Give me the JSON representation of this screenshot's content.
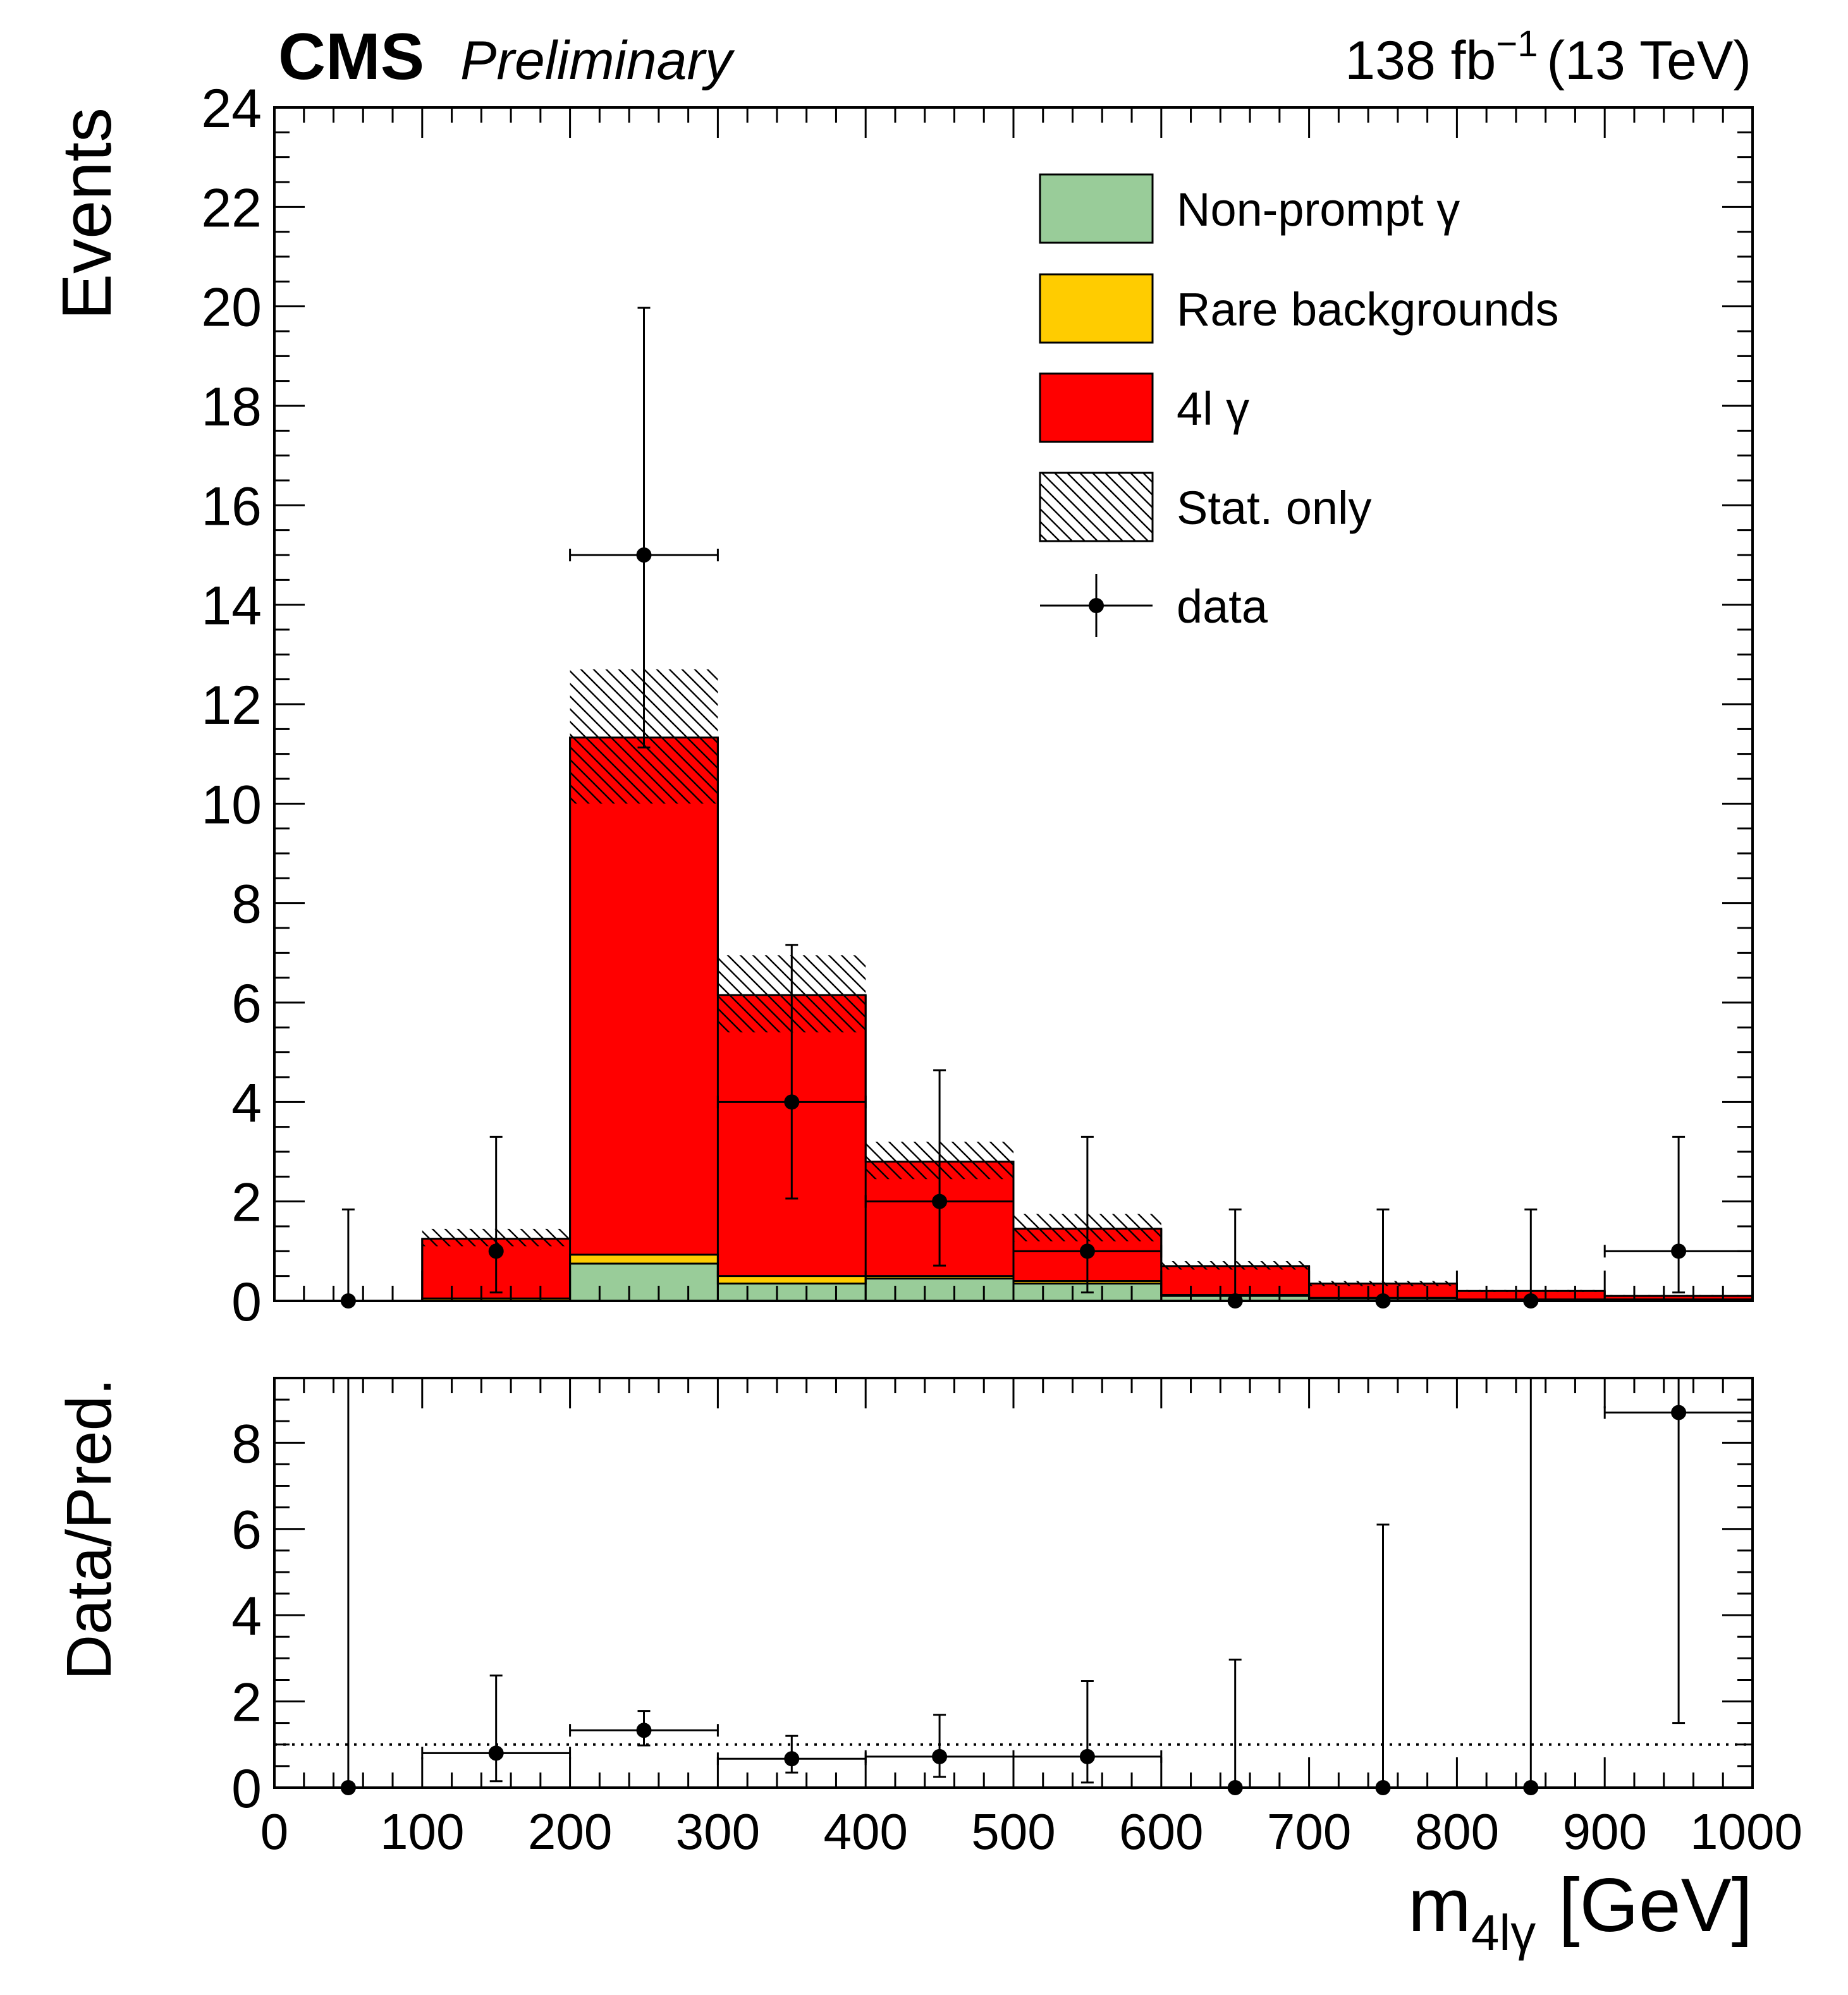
{
  "header": {
    "experiment": "CMS",
    "status": "Preliminary",
    "lumi_value": "138 fb",
    "lumi_exponent": "−1",
    "energy": "(13 TeV)"
  },
  "chart_data": [
    {
      "type": "bar",
      "stacked": true,
      "panel": "main",
      "ylabel": "Events",
      "xlim": [
        0,
        1000
      ],
      "ylim": [
        0,
        24
      ],
      "yticks": [
        "0",
        "2",
        "4",
        "6",
        "8",
        "10",
        "12",
        "14",
        "16",
        "18",
        "20",
        "22",
        "24"
      ],
      "bin_edges": [
        0,
        100,
        200,
        300,
        400,
        500,
        600,
        700,
        800,
        900,
        1000
      ],
      "series": [
        {
          "name": "Non-prompt γ",
          "color": "#99cc99",
          "values": [
            0,
            0,
            0.75,
            0.35,
            0.45,
            0.35,
            0.1,
            0.05,
            0.02,
            0.02
          ]
        },
        {
          "name": "Rare backgrounds",
          "color": "#ffcc00",
          "values": [
            0,
            0.05,
            0.18,
            0.15,
            0.05,
            0.05,
            0.02,
            0.01,
            0.01,
            0.01
          ]
        },
        {
          "name": "4l γ",
          "color": "#ff0000",
          "values": [
            0,
            1.2,
            10.4,
            5.65,
            2.3,
            1.05,
            0.58,
            0.29,
            0.17,
            0.07
          ]
        }
      ],
      "stat_unc": {
        "name": "Stat. only",
        "low": [
          0,
          1.1,
          10.0,
          5.4,
          2.45,
          1.2,
          0.63,
          0.3,
          0.18,
          0.09
        ],
        "high": [
          0,
          1.45,
          12.7,
          6.95,
          3.2,
          1.75,
          0.8,
          0.4,
          0.22,
          0.12
        ]
      },
      "data": {
        "name": "data",
        "x": [
          50,
          150,
          250,
          350,
          450,
          550,
          650,
          750,
          850,
          950
        ],
        "y": [
          0,
          1,
          15,
          4,
          2,
          1,
          0,
          0,
          0,
          1
        ],
        "err_low": [
          0,
          0.83,
          3.87,
          1.94,
          1.29,
          0.83,
          0,
          0,
          0,
          0.83
        ],
        "err_high": [
          1.84,
          2.3,
          4.97,
          3.16,
          2.64,
          2.3,
          1.84,
          1.84,
          1.84,
          2.3
        ],
        "xerr": [
          false,
          false,
          true,
          true,
          true,
          true,
          false,
          false,
          false,
          true
        ]
      },
      "legend": {
        "position": "top-right",
        "entries": [
          "Non-prompt γ",
          "Rare backgrounds",
          "4l γ",
          "Stat. only",
          "data"
        ]
      }
    },
    {
      "type": "scatter",
      "panel": "ratio",
      "ylabel": "Data/Pred.",
      "xlabel_main": "m",
      "xlabel_sub": "4lγ",
      "xlabel_unit": "[GeV]",
      "xlim": [
        0,
        1000
      ],
      "ylim": [
        0,
        9.5
      ],
      "yticks": [
        "0",
        "2",
        "4",
        "6",
        "8"
      ],
      "xticks": [
        "0",
        "100",
        "200",
        "300",
        "400",
        "500",
        "600",
        "700",
        "800",
        "900",
        "1000"
      ],
      "reference_line": 1,
      "x": [
        50,
        150,
        250,
        350,
        450,
        550,
        650,
        750,
        850,
        950
      ],
      "y": [
        0,
        0.8,
        1.33,
        0.67,
        0.72,
        0.72,
        0,
        0,
        0,
        8.7
      ],
      "err_low": [
        0,
        0.65,
        0.35,
        0.32,
        0.47,
        0.6,
        0,
        0,
        0,
        7.2
      ],
      "err_high": [
        9.5,
        1.8,
        0.45,
        0.53,
        0.97,
        1.75,
        2.97,
        6.1,
        9.5,
        1.0
      ],
      "xerr": [
        false,
        true,
        true,
        true,
        true,
        true,
        false,
        false,
        false,
        true
      ]
    }
  ]
}
